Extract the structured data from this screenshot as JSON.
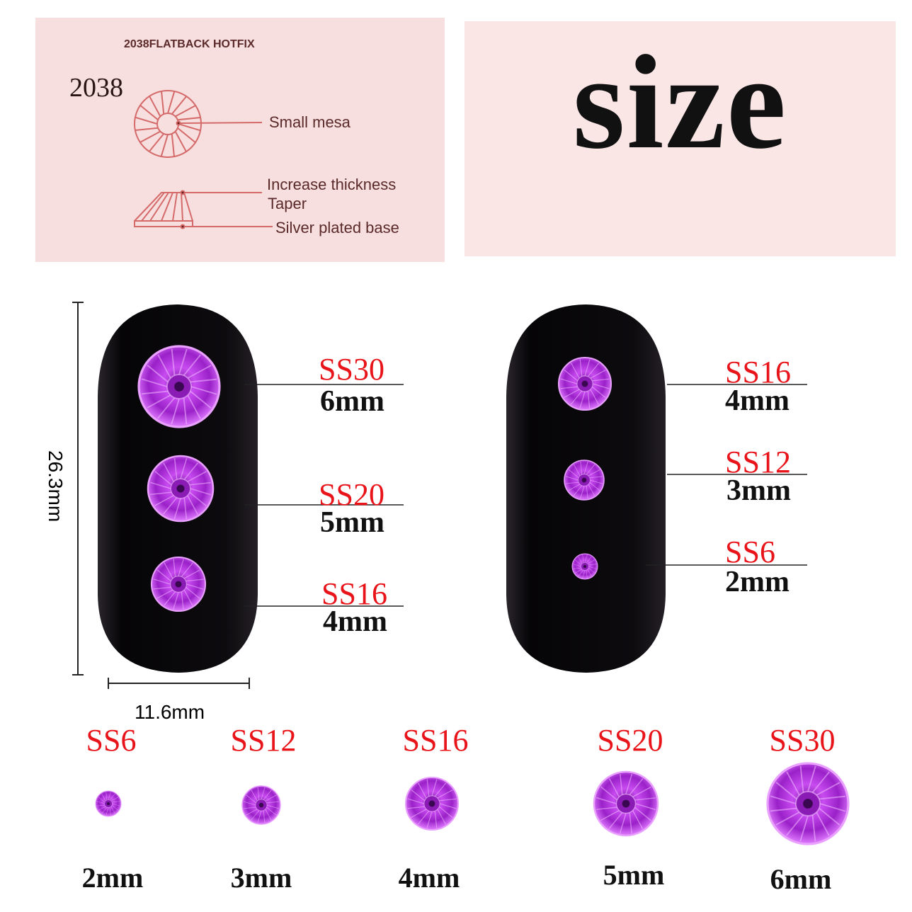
{
  "diagram": {
    "header": "2038FLATBACK HOTFIX",
    "model": "2038",
    "labels": {
      "mesa": "Small mesa",
      "thickness": "Increase thickness",
      "taper": "Taper",
      "base": "Silver plated base"
    },
    "line_color": "#d46a6a"
  },
  "title": "size",
  "dimensions": {
    "height": "26.3mm",
    "width": "11.6mm"
  },
  "left_nail": [
    {
      "ss": "SS30",
      "mm": "6mm"
    },
    {
      "ss": "SS20",
      "mm": "5mm"
    },
    {
      "ss": "SS16",
      "mm": "4mm"
    }
  ],
  "right_nail": [
    {
      "ss": "SS16",
      "mm": "4mm"
    },
    {
      "ss": "SS12",
      "mm": "3mm"
    },
    {
      "ss": "SS6",
      "mm": "2mm"
    }
  ],
  "bottom_row": [
    {
      "ss": "SS6",
      "mm": "2mm"
    },
    {
      "ss": "SS12",
      "mm": "3mm"
    },
    {
      "ss": "SS16",
      "mm": "4mm"
    },
    {
      "ss": "SS20",
      "mm": "5mm"
    },
    {
      "ss": "SS30",
      "mm": "6mm"
    }
  ],
  "colors": {
    "gem": "#b52ee0",
    "label_red": "#e8141a",
    "nail": "#0d0b0e",
    "panel_pink": "#f8dfdf"
  }
}
